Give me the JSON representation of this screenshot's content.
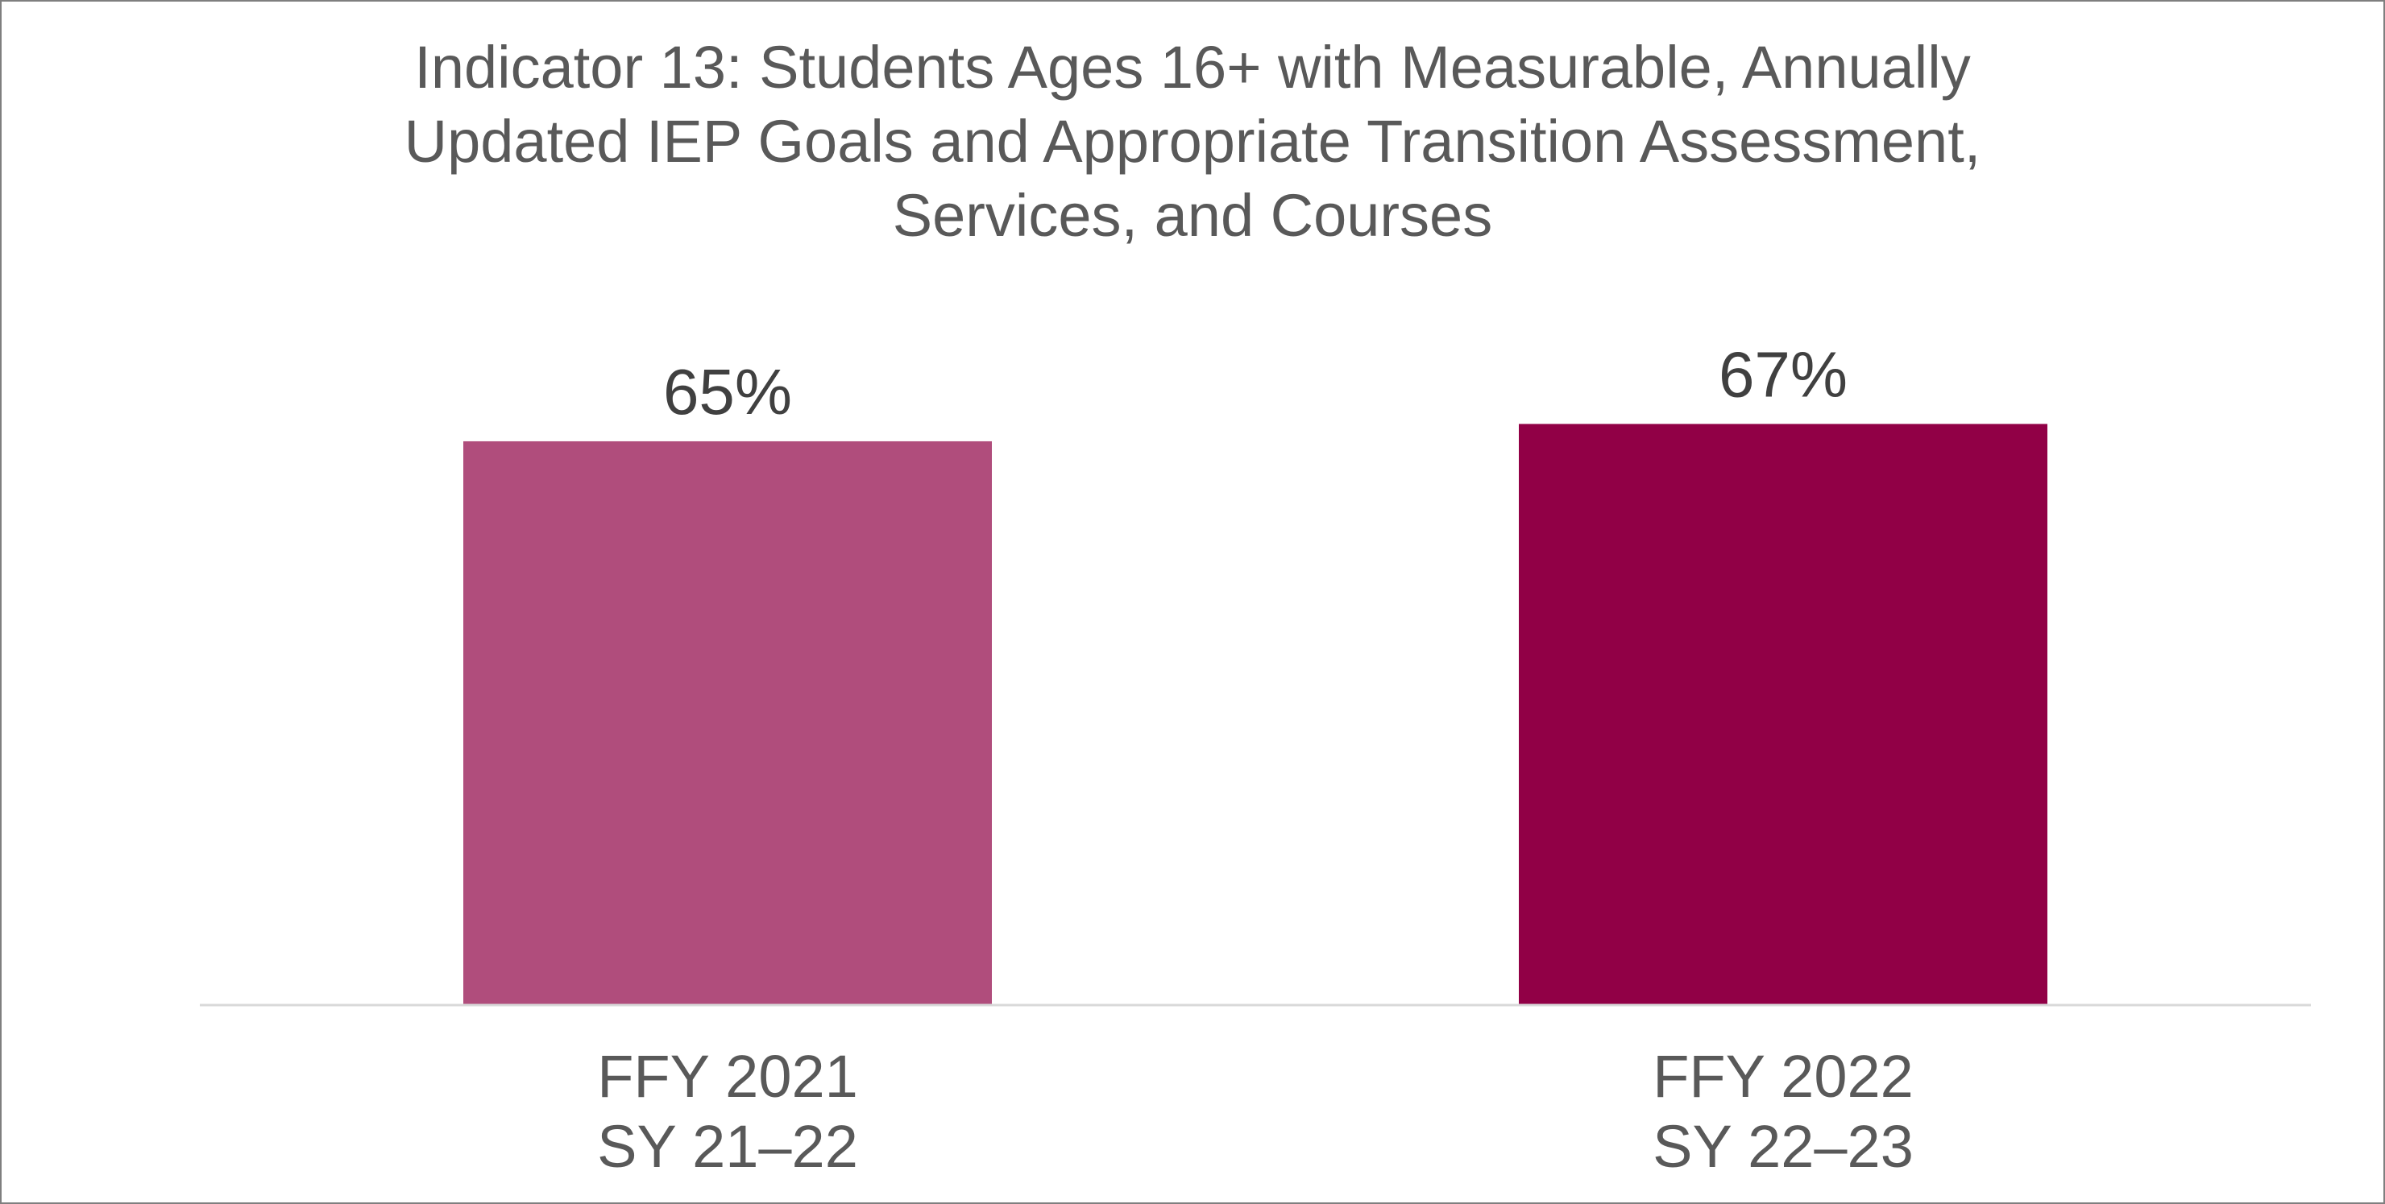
{
  "chart_data": {
    "type": "bar",
    "title_lines": [
      "Indicator 13: Students Ages 16+ with Measurable, Annually",
      "Updated IEP Goals and Appropriate Transition Assessment,",
      "Services, and Courses"
    ],
    "categories": [
      [
        "FFY 2021",
        "SY 21–22"
      ],
      [
        "FFY 2022",
        "SY 22–23"
      ]
    ],
    "values": [
      65,
      67
    ],
    "data_labels": [
      "65%",
      "67%"
    ],
    "bar_colors": [
      "#b04d7c",
      "#910046"
    ],
    "axis_line_color": "#d9d9d9",
    "ylim": [
      0,
      100
    ],
    "y_axis_visible": false,
    "grid": false,
    "legend": "none"
  }
}
